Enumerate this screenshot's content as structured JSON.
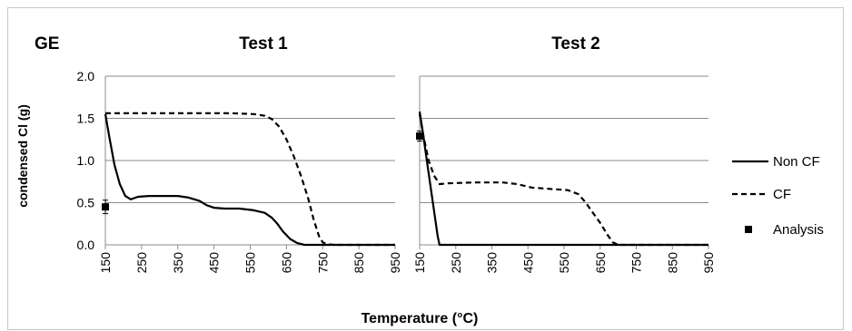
{
  "chart_label": "GE",
  "chart_data": [
    {
      "type": "line",
      "title": "Test 1",
      "xlabel": "Temperature (°C)",
      "ylabel": "condensed Cl (g)",
      "xlim": [
        150,
        950
      ],
      "ylim": [
        0,
        2
      ],
      "x_ticks": [
        "150",
        "250",
        "350",
        "450",
        "550",
        "650",
        "750",
        "850",
        "950"
      ],
      "y_ticks": [
        "0.0",
        "0.5",
        "1.0",
        "1.5",
        "2.0"
      ],
      "grid": "horizontal",
      "legend": "right",
      "series": [
        {
          "name": "Non CF",
          "style": "solid",
          "x": [
            150,
            160,
            175,
            190,
            205,
            220,
            240,
            270,
            300,
            350,
            380,
            410,
            430,
            450,
            480,
            520,
            560,
            590,
            610,
            625,
            640,
            660,
            680,
            700,
            720,
            950
          ],
          "y": [
            1.55,
            1.3,
            0.95,
            0.72,
            0.58,
            0.54,
            0.57,
            0.58,
            0.58,
            0.58,
            0.56,
            0.52,
            0.47,
            0.44,
            0.43,
            0.43,
            0.41,
            0.38,
            0.32,
            0.25,
            0.16,
            0.07,
            0.02,
            0.0,
            0.0,
            0.0
          ]
        },
        {
          "name": "CF",
          "style": "dashed",
          "x": [
            150,
            200,
            300,
            400,
            500,
            560,
            590,
            610,
            630,
            650,
            670,
            690,
            710,
            725,
            740,
            750,
            760,
            780,
            950
          ],
          "y": [
            1.56,
            1.56,
            1.56,
            1.56,
            1.56,
            1.55,
            1.53,
            1.49,
            1.4,
            1.25,
            1.05,
            0.82,
            0.55,
            0.3,
            0.1,
            0.03,
            0.01,
            0.0,
            0.0
          ]
        },
        {
          "name": "Analysis",
          "style": "marker",
          "x": [
            150
          ],
          "y": [
            0.45
          ],
          "error": [
            0.08
          ]
        }
      ]
    },
    {
      "type": "line",
      "title": "Test 2",
      "xlabel": "Temperature (°C)",
      "xlim": [
        150,
        950
      ],
      "ylim": [
        0,
        2
      ],
      "x_ticks": [
        "150",
        "250",
        "350",
        "450",
        "550",
        "650",
        "750",
        "850",
        "950"
      ],
      "grid": "horizontal",
      "series": [
        {
          "name": "Non CF",
          "style": "solid",
          "x": [
            150,
            160,
            170,
            180,
            190,
            200,
            205,
            950
          ],
          "y": [
            1.58,
            1.3,
            1.0,
            0.7,
            0.4,
            0.1,
            0.0,
            0.0
          ]
        },
        {
          "name": "CF",
          "style": "dashed",
          "x": [
            150,
            160,
            175,
            190,
            205,
            230,
            300,
            380,
            420,
            460,
            520,
            560,
            590,
            610,
            630,
            650,
            670,
            685,
            700,
            950
          ],
          "y": [
            1.55,
            1.3,
            1.0,
            0.82,
            0.72,
            0.73,
            0.74,
            0.74,
            0.72,
            0.68,
            0.66,
            0.65,
            0.6,
            0.5,
            0.38,
            0.26,
            0.12,
            0.03,
            0.0,
            0.0
          ]
        },
        {
          "name": "Analysis",
          "style": "marker",
          "x": [
            150
          ],
          "y": [
            1.29
          ],
          "error": [
            0.06
          ]
        }
      ]
    }
  ]
}
